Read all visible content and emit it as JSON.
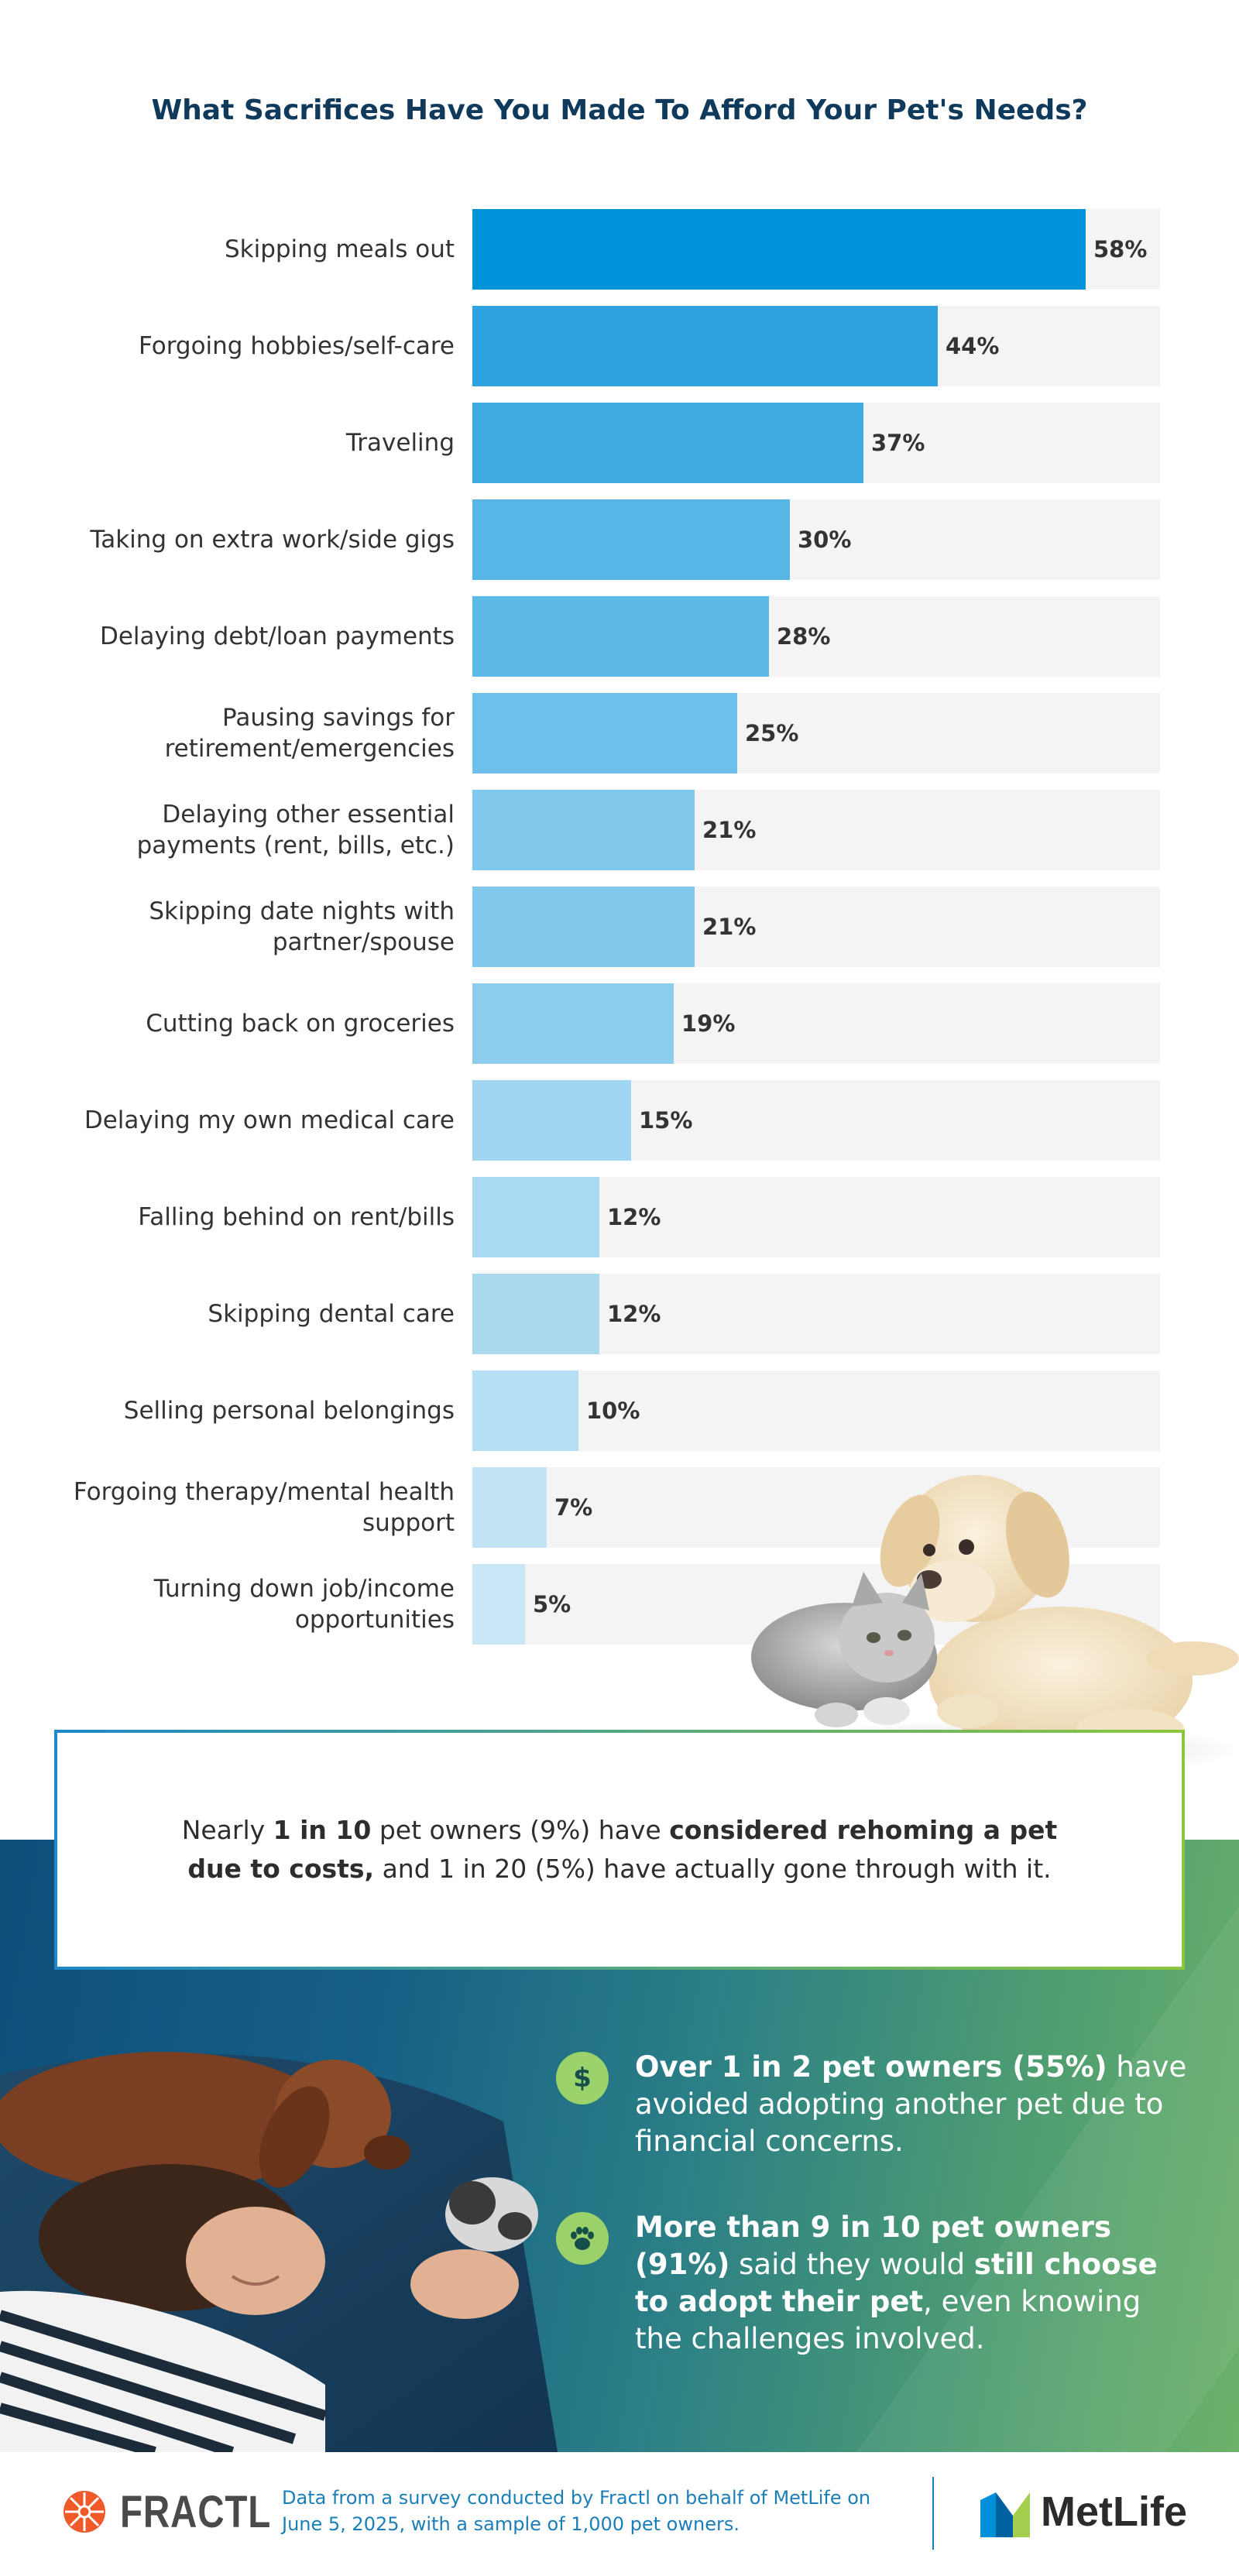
{
  "chart_data": {
    "type": "bar",
    "orientation": "horizontal",
    "title": "What Sacrifices Have You Made To Afford Your Pet's Needs?",
    "categories": [
      "Skipping meals out",
      "Forgoing hobbies/self-care",
      "Traveling",
      "Taking on extra work/side gigs",
      "Delaying debt/loan payments",
      "Pausing savings for retirement/emergencies",
      "Delaying other essential payments (rent, bills, etc.)",
      "Skipping date nights with partner/spouse",
      "Cutting back on groceries",
      "Delaying my own medical care",
      "Falling behind on rent/bills",
      "Skipping dental care",
      "Selling personal belongings",
      "Forgoing therapy/mental health support",
      "Turning down job/income opportunities"
    ],
    "values": [
      58,
      44,
      37,
      30,
      28,
      25,
      21,
      21,
      19,
      15,
      12,
      12,
      10,
      7,
      5
    ],
    "value_labels": [
      "58%",
      "44%",
      "37%",
      "30%",
      "28%",
      "25%",
      "21%",
      "21%",
      "19%",
      "15%",
      "12%",
      "12%",
      "10%",
      "7%",
      "5%"
    ],
    "xlim": [
      0,
      65
    ],
    "grid": false,
    "bar_colors": [
      "#0093d9",
      "#2ea3e0",
      "#3eaae2",
      "#58b6e6",
      "#5db9e7",
      "#6cc0ea",
      "#81c9ec",
      "#81c9ec",
      "#8ccdee",
      "#a0d6f1",
      "#a8daf2",
      "#aad9ef",
      "#b6dff4",
      "#c2e4f5",
      "#c9e7f6"
    ]
  },
  "callout": {
    "p1": "Nearly ",
    "b1": "1 in 10",
    "p2": " pet owners (9%) have ",
    "b2": "considered rehoming a pet due to costs,",
    "p3": " and 1 in 20 (5%) have actually gone through with it."
  },
  "stats": [
    {
      "icon": "dollar-icon",
      "glyph": "$",
      "bold1": "Over 1 in 2 pet owners (55%)",
      "text1": " have avoided adopting another pet due to financial concerns."
    },
    {
      "icon": "paw-icon",
      "bold1": "More than 9 in 10 pet owners (91%)",
      "text1": " said they would ",
      "bold2": "still choose to adopt their pet",
      "text2": ", even knowing the challenges involved."
    }
  ],
  "footer": {
    "brand_left": "FRACTL",
    "note": "Data from a survey conducted by Fractl on behalf of MetLife on June 5, 2025, with a sample of 1,000 pet owners.",
    "brand_right": "MetLife"
  },
  "colors": {
    "title": "#0f3a5c",
    "track": "#f4f4f4",
    "band_start": "#0d4f7a",
    "band_end": "#6db26a",
    "stat_icon": "#9bd26b",
    "footnote": "#1a7fb8",
    "fractl_orange": "#f05a28",
    "metlife_blue": "#0090da",
    "metlife_green": "#a4ce4e"
  }
}
